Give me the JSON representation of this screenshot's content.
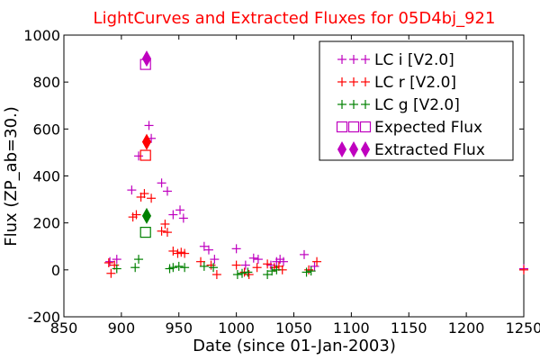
{
  "chart_data": {
    "type": "scatter",
    "title": "LightCurves and Extracted Fluxes for 05D4bj_921",
    "xlabel": "Date (since 01-Jan-2003)",
    "ylabel": "Flux (ZP_ab=30.)",
    "xlim": [
      850,
      1250
    ],
    "ylim": [
      -200,
      1000
    ],
    "xticks": [
      850,
      900,
      950,
      1000,
      1050,
      1100,
      1150,
      1200,
      1250
    ],
    "yticks": [
      -200,
      0,
      200,
      400,
      600,
      800,
      1000
    ],
    "grid": false,
    "legend_position": "top-right",
    "series": [
      {
        "name": "LC i [V2.0]",
        "color": "#bf00bf",
        "marker": "plus",
        "points": [
          [
            890,
            35
          ],
          [
            896,
            45
          ],
          [
            909,
            340
          ],
          [
            915,
            485
          ],
          [
            924,
            615
          ],
          [
            926,
            560
          ],
          [
            935,
            370
          ],
          [
            940,
            335
          ],
          [
            945,
            235
          ],
          [
            951,
            255
          ],
          [
            954,
            220
          ],
          [
            972,
            100
          ],
          [
            976,
            85
          ],
          [
            981,
            45
          ],
          [
            1000,
            90
          ],
          [
            1008,
            20
          ],
          [
            1015,
            50
          ],
          [
            1019,
            45
          ],
          [
            1030,
            20
          ],
          [
            1035,
            35
          ],
          [
            1038,
            45
          ],
          [
            1041,
            35
          ],
          [
            1059,
            65
          ],
          [
            1068,
            15
          ],
          [
            1250,
            5
          ]
        ]
      },
      {
        "name": "LC r [V2.0]",
        "color": "#ff0000",
        "marker": "plus",
        "points": [
          [
            889,
            30
          ],
          [
            891,
            -15
          ],
          [
            894,
            20
          ],
          [
            910,
            225
          ],
          [
            913,
            235
          ],
          [
            917,
            310
          ],
          [
            920,
            325
          ],
          [
            926,
            305
          ],
          [
            935,
            165
          ],
          [
            938,
            195
          ],
          [
            940,
            160
          ],
          [
            945,
            80
          ],
          [
            949,
            70
          ],
          [
            952,
            75
          ],
          [
            955,
            70
          ],
          [
            969,
            35
          ],
          [
            978,
            20
          ],
          [
            983,
            -20
          ],
          [
            1000,
            20
          ],
          [
            1007,
            -10
          ],
          [
            1011,
            -20
          ],
          [
            1018,
            10
          ],
          [
            1027,
            25
          ],
          [
            1033,
            10
          ],
          [
            1037,
            15
          ],
          [
            1040,
            0
          ],
          [
            1063,
            0
          ],
          [
            1070,
            35
          ],
          [
            1250,
            0
          ]
        ]
      },
      {
        "name": "LC g [V2.0]",
        "color": "#008000",
        "marker": "plus",
        "points": [
          [
            896,
            5
          ],
          [
            912,
            10
          ],
          [
            915,
            45
          ],
          [
            942,
            5
          ],
          [
            945,
            10
          ],
          [
            950,
            15
          ],
          [
            955,
            10
          ],
          [
            972,
            15
          ],
          [
            980,
            10
          ],
          [
            1001,
            -20
          ],
          [
            1005,
            -15
          ],
          [
            1010,
            -10
          ],
          [
            1027,
            -20
          ],
          [
            1031,
            -5
          ],
          [
            1035,
            0
          ],
          [
            1061,
            -10
          ],
          [
            1065,
            -5
          ]
        ]
      },
      {
        "name": "Expected Flux",
        "color": "#bf00bf",
        "marker": "square",
        "points": [
          [
            921,
            875
          ]
        ]
      },
      {
        "name": "Expected Flux (r)",
        "color": "#ff0000",
        "marker": "square",
        "points": [
          [
            921,
            488
          ]
        ]
      },
      {
        "name": "Expected Flux (g)",
        "color": "#008000",
        "marker": "square",
        "points": [
          [
            921,
            160
          ]
        ]
      },
      {
        "name": "Extracted Flux",
        "color": "#bf00bf",
        "marker": "diamond",
        "points": [
          [
            922,
            900
          ]
        ]
      },
      {
        "name": "Extracted Flux (r)",
        "color": "#ff0000",
        "marker": "diamond",
        "points": [
          [
            922,
            545
          ]
        ]
      },
      {
        "name": "Extracted Flux (g)",
        "color": "#008000",
        "marker": "diamond",
        "points": [
          [
            922,
            230
          ]
        ]
      }
    ],
    "legend": [
      {
        "label": "LC i [V2.0]",
        "color": "#bf00bf",
        "marker": "plus"
      },
      {
        "label": "LC r [V2.0]",
        "color": "#ff0000",
        "marker": "plus"
      },
      {
        "label": "LC g [V2.0]",
        "color": "#008000",
        "marker": "plus"
      },
      {
        "label": "Expected Flux",
        "color": "#bf00bf",
        "marker": "square"
      },
      {
        "label": "Extracted Flux",
        "color": "#bf00bf",
        "marker": "diamond"
      }
    ]
  }
}
